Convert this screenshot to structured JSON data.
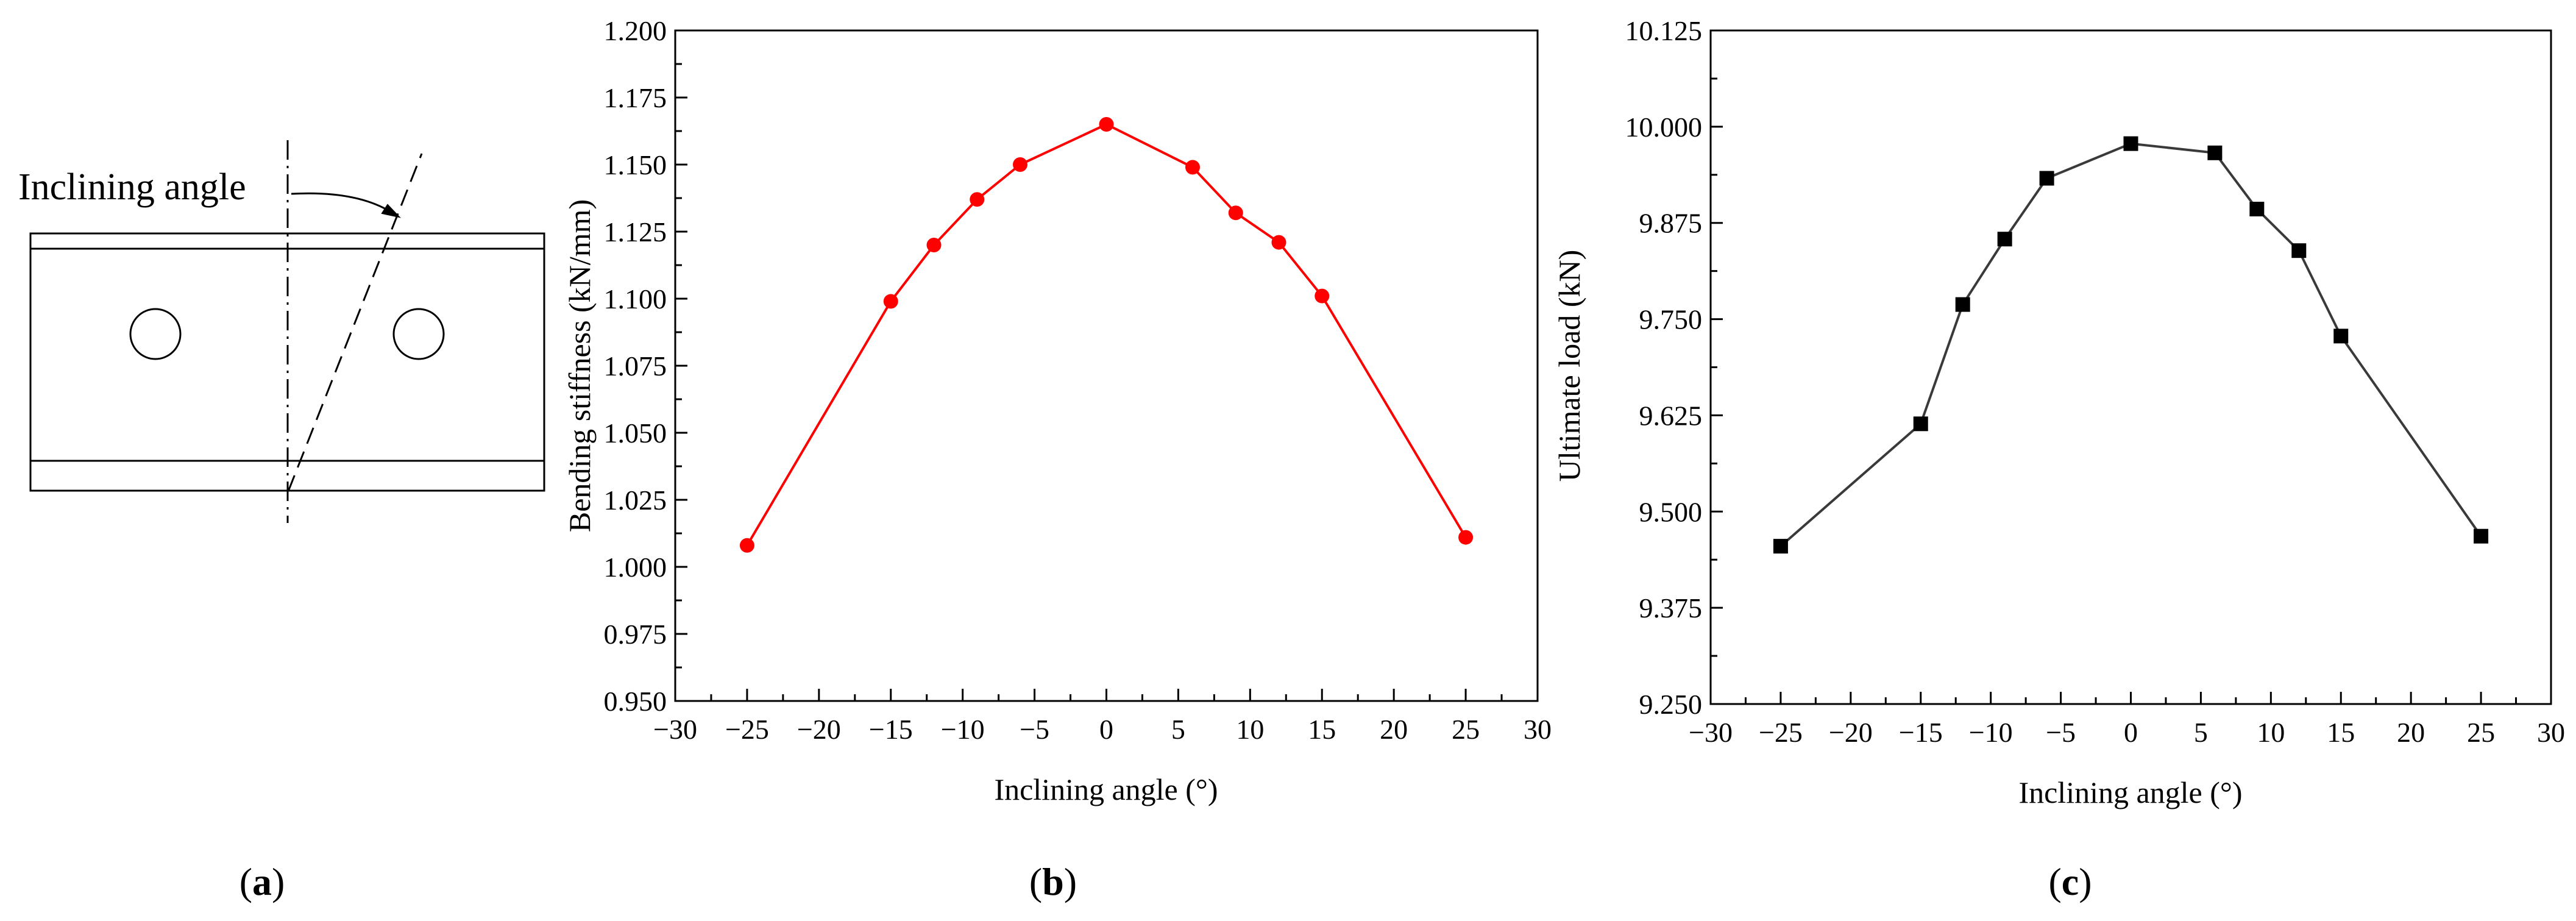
{
  "diagram": {
    "label_text": "Inclining angle"
  },
  "panel_labels": [
    {
      "open": "(",
      "letter": "a",
      "close": ")"
    },
    {
      "open": "(",
      "letter": "b",
      "close": ")"
    },
    {
      "open": "(",
      "letter": "c",
      "close": ")"
    }
  ],
  "chart_data": [
    {
      "type": "line",
      "title": "",
      "xlabel": "Inclining angle (°)",
      "ylabel": "Bending stiffness (kN/mm)",
      "xlim": [
        -30,
        30
      ],
      "ylim": [
        0.95,
        1.2
      ],
      "xticks": [
        -30,
        -25,
        -20,
        -15,
        -10,
        -5,
        0,
        5,
        10,
        15,
        20,
        25,
        30
      ],
      "xtick_labels": [
        "−30",
        "−25",
        "−20",
        "−15",
        "−10",
        "−5",
        "0",
        "5",
        "10",
        "15",
        "20",
        "25",
        "30"
      ],
      "yticks": [
        0.95,
        0.975,
        1.0,
        1.025,
        1.05,
        1.075,
        1.1,
        1.125,
        1.15,
        1.175,
        1.2
      ],
      "ytick_labels": [
        "0.950",
        "0.975",
        "1.000",
        "1.025",
        "1.050",
        "1.075",
        "1.100",
        "1.125",
        "1.150",
        "1.175",
        "1.200"
      ],
      "marker": "circle",
      "color": "#ff0000",
      "x": [
        -25,
        -15,
        -12,
        -9,
        -6,
        0,
        6,
        9,
        12,
        15,
        25
      ],
      "y": [
        1.008,
        1.099,
        1.12,
        1.137,
        1.15,
        1.165,
        1.149,
        1.132,
        1.121,
        1.101,
        1.011
      ]
    },
    {
      "type": "line",
      "title": "",
      "xlabel": "Inclining angle (°)",
      "ylabel": "Ultimate load (kN)",
      "xlim": [
        -30,
        30
      ],
      "ylim": [
        9.25,
        10.125
      ],
      "xticks": [
        -30,
        -25,
        -20,
        -15,
        -10,
        -5,
        0,
        5,
        10,
        15,
        20,
        25,
        30
      ],
      "xtick_labels": [
        "−30",
        "−25",
        "−20",
        "−15",
        "−10",
        "−5",
        "0",
        "5",
        "10",
        "15",
        "20",
        "25",
        "30"
      ],
      "yticks": [
        9.25,
        9.375,
        9.5,
        9.625,
        9.75,
        9.875,
        10.0,
        10.125
      ],
      "ytick_labels": [
        "9.250",
        "9.375",
        "9.500",
        "9.625",
        "9.750",
        "9.875",
        "10.000",
        "10.125"
      ],
      "marker": "square",
      "color": "#000000",
      "line_color": "#3a3a3a",
      "x": [
        -25,
        -15,
        -12,
        -9,
        -6,
        0,
        6,
        9,
        12,
        15,
        25
      ],
      "y": [
        9.455,
        9.614,
        9.769,
        9.854,
        9.933,
        9.978,
        9.966,
        9.893,
        9.839,
        9.728,
        9.468
      ]
    }
  ]
}
